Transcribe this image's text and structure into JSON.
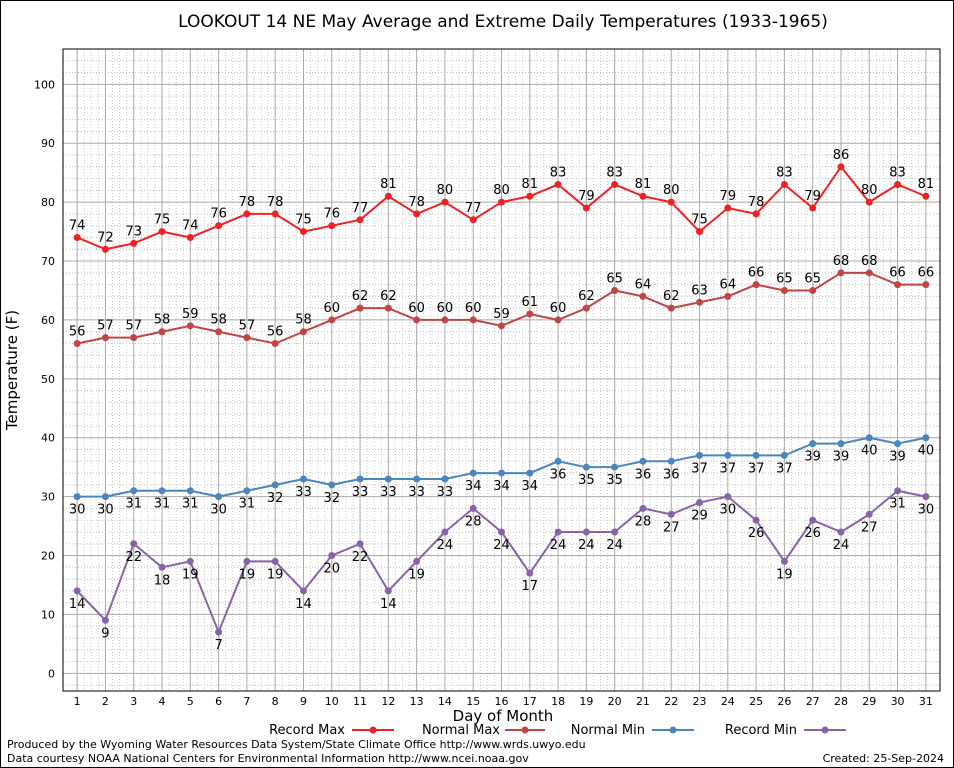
{
  "chart_data": {
    "type": "line",
    "title": "LOOKOUT 14 NE May Average and Extreme Daily Temperatures (1933-1965)",
    "xlabel": "Day of Month",
    "ylabel": "Temperature (F)",
    "xlim": [
      0.5,
      31.5
    ],
    "ylim": [
      -3,
      106
    ],
    "yticks": [
      0,
      10,
      20,
      30,
      40,
      50,
      60,
      70,
      80,
      90,
      100
    ],
    "x": [
      1,
      2,
      3,
      4,
      5,
      6,
      7,
      8,
      9,
      10,
      11,
      12,
      13,
      14,
      15,
      16,
      17,
      18,
      19,
      20,
      21,
      22,
      23,
      24,
      25,
      26,
      27,
      28,
      29,
      30,
      31
    ],
    "grid": true,
    "legend_position": "bottom",
    "series": [
      {
        "name": "Record Max",
        "color": "#ee2222",
        "label_pos": "above",
        "values": [
          74,
          72,
          73,
          75,
          74,
          76,
          78,
          78,
          75,
          76,
          77,
          81,
          78,
          80,
          77,
          80,
          81,
          83,
          79,
          83,
          81,
          80,
          75,
          79,
          78,
          83,
          79,
          86,
          80,
          83,
          81
        ]
      },
      {
        "name": "Normal Max",
        "color": "#c04545",
        "label_pos": "above",
        "values": [
          56,
          57,
          57,
          58,
          59,
          58,
          57,
          56,
          58,
          60,
          62,
          62,
          60,
          60,
          60,
          59,
          61,
          60,
          62,
          65,
          64,
          62,
          63,
          64,
          66,
          65,
          65,
          68,
          68,
          66,
          66
        ]
      },
      {
        "name": "Normal Min",
        "color": "#4a86bd",
        "label_pos": "below",
        "values": [
          30,
          30,
          31,
          31,
          31,
          30,
          31,
          32,
          33,
          32,
          33,
          33,
          33,
          33,
          34,
          34,
          34,
          36,
          35,
          35,
          36,
          36,
          37,
          37,
          37,
          37,
          39,
          39,
          40,
          39,
          40
        ]
      },
      {
        "name": "Record Min",
        "color": "#8a62a8",
        "label_pos": "below",
        "values": [
          14,
          9,
          22,
          18,
          19,
          7,
          19,
          19,
          14,
          20,
          22,
          14,
          19,
          24,
          28,
          24,
          17,
          24,
          24,
          24,
          28,
          27,
          29,
          30,
          26,
          19,
          26,
          24,
          27,
          31,
          30
        ]
      }
    ]
  },
  "footer": {
    "produced_by": "Produced by the Wyoming Water Resources Data System/State Climate Office http://www.wrds.uwyo.edu",
    "data_courtesy": "Data courtesy NOAA National Centers for Environmental Information http://www.ncei.noaa.gov",
    "created": "Created:  25-Sep-2024"
  }
}
